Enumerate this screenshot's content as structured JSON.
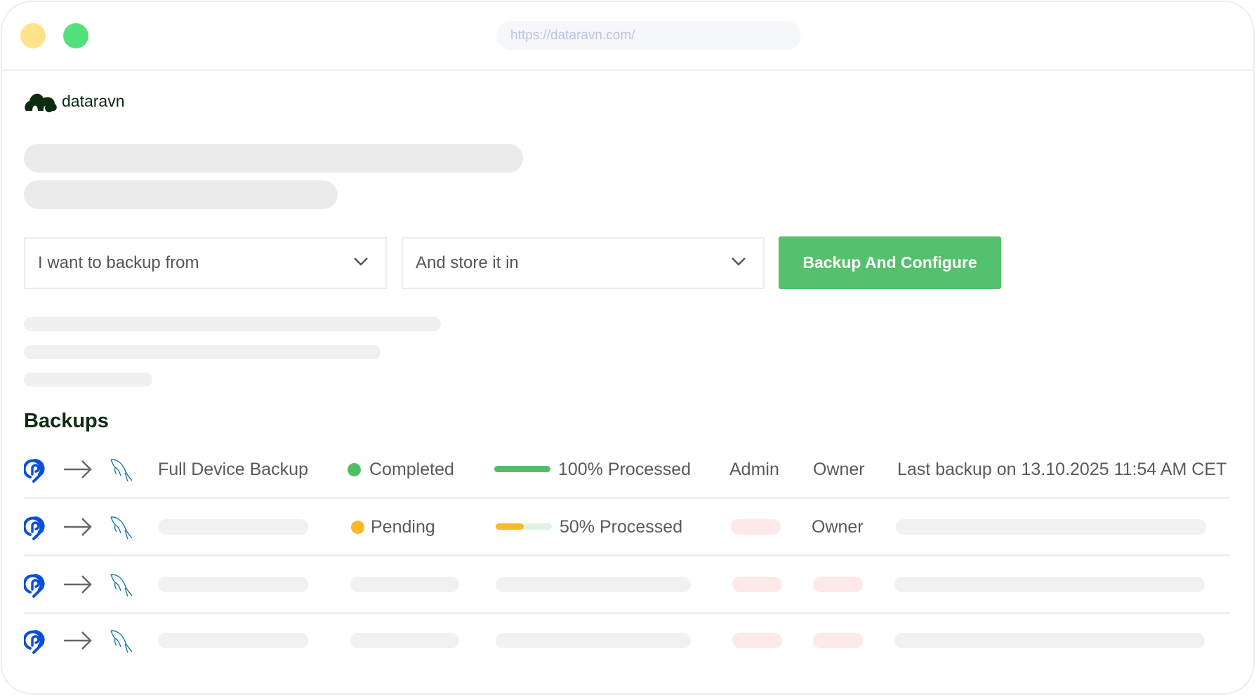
{
  "browser": {
    "url": "https://dataravn.com/",
    "traffic_lights": [
      "#ffe38a",
      "#55e07e"
    ]
  },
  "brand": {
    "name": "dataravn",
    "color": "#0d2b10"
  },
  "form": {
    "source_placeholder": "I want to backup from",
    "destination_placeholder": "And store it in",
    "submit_label": "Backup And Configure",
    "accent": "#55c06d"
  },
  "backups": {
    "title": "Backups",
    "rows": [
      {
        "source_icon": "pcloud-icon",
        "destination_icon": "mysql-icon",
        "name": "Full Device Backup",
        "status": "Completed",
        "status_color": "#4fbf66",
        "progress": 100,
        "progress_label": "100% Processed",
        "role": "Admin",
        "access": "Owner",
        "last_backup": "Last backup on 13.10.2025 11:54 AM CET"
      },
      {
        "source_icon": "pcloud-icon",
        "destination_icon": "mysql-icon",
        "status": "Pending",
        "status_color": "#f7b928",
        "progress": 50,
        "progress_label": "50% Processed",
        "access": "Owner"
      },
      {
        "source_icon": "pcloud-icon",
        "destination_icon": "mysql-icon"
      },
      {
        "source_icon": "pcloud-icon",
        "destination_icon": "mysql-icon"
      }
    ]
  }
}
